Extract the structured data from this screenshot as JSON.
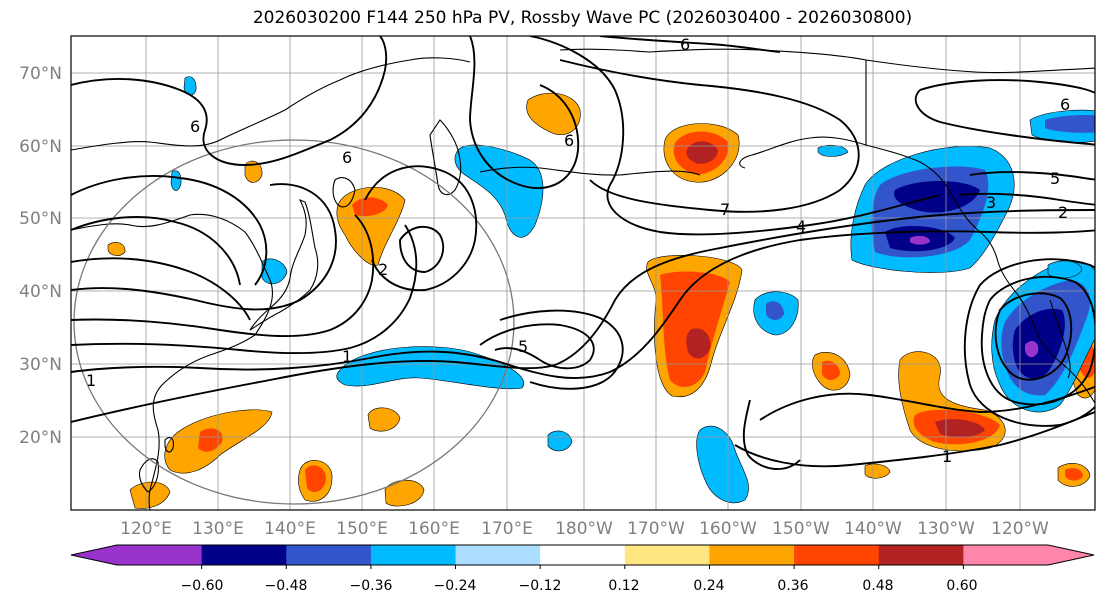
{
  "title": "2026030200 F144 250 hPa PV, Rossby Wave PC (2026030400 - 2026030800)",
  "map": {
    "lat_labels": [
      "70°N",
      "60°N",
      "50°N",
      "40°N",
      "30°N",
      "20°N"
    ],
    "lon_labels": [
      "120°E",
      "130°E",
      "140°E",
      "150°E",
      "160°E",
      "170°E",
      "180°W",
      "170°W",
      "160°W",
      "150°W",
      "140°W",
      "130°W",
      "120°W"
    ],
    "contour_labels": [
      "6",
      "6",
      "6",
      "7",
      "4",
      "5",
      "3",
      "2",
      "6",
      "6",
      "5",
      "2",
      "1",
      "1",
      "1"
    ]
  },
  "colorbar": {
    "ticks": [
      "−0.60",
      "−0.48",
      "−0.36",
      "−0.24",
      "−0.12",
      "0.12",
      "0.24",
      "0.36",
      "0.48",
      "0.60"
    ],
    "colors": [
      "#9933cc",
      "#000088",
      "#3355cc",
      "#00bbff",
      "#aaddff",
      "#ffffff",
      "#ffe680",
      "#ffa500",
      "#ff4500",
      "#b22222",
      "#ff85aa",
      "#ff85aa"
    ]
  }
}
